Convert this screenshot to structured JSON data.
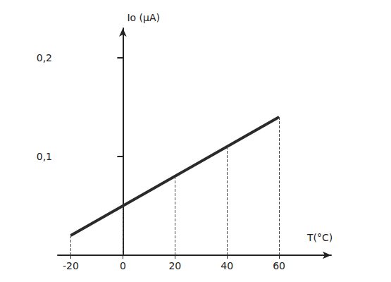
{
  "chart_data": {
    "type": "line",
    "x": [
      -20,
      0,
      20,
      40,
      60
    ],
    "values": [
      0.02,
      0.05,
      0.08,
      0.11,
      0.14
    ],
    "color": "#2a2a2a",
    "x_label": "T(°C)",
    "y_label": "Io (µA)",
    "xlim": [
      -25,
      80
    ],
    "xticks": [
      -20,
      0,
      20,
      40,
      60
    ],
    "ylim": [
      0,
      0.23
    ],
    "yticks": [
      {
        "value": 0.1,
        "label": "0,1"
      },
      {
        "value": 0.2,
        "label": "0,2"
      }
    ],
    "grid": false
  }
}
